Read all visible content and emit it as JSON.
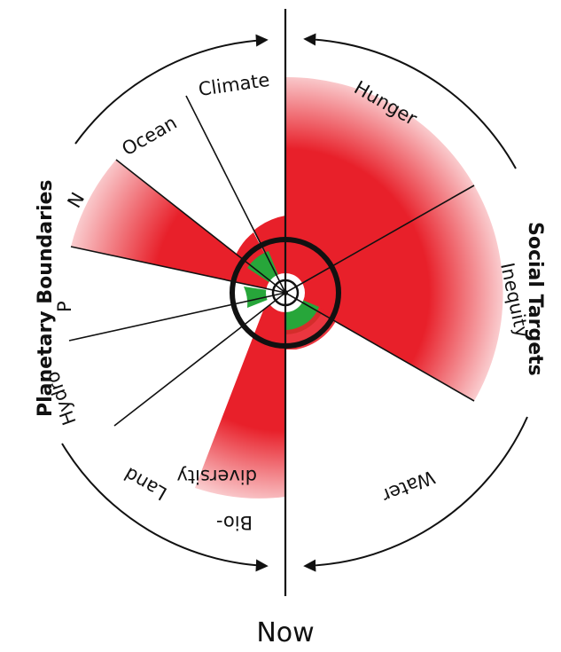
{
  "labels": {
    "now": "Now",
    "planetary_boundaries": "Planetary Boundaries",
    "social_targets": "Social Targets"
  },
  "planetary_boundaries": [
    {
      "name": "Climate",
      "level": 0.2
    },
    {
      "name": "Ocean",
      "level": 0.2
    },
    {
      "name": "N",
      "level": 2.8
    },
    {
      "name": "P",
      "level": 0.2
    },
    {
      "name": "Hydro",
      "level": 0.2
    },
    {
      "name": "Land",
      "level": 0.2
    },
    {
      "name": "Bio-\ndiversity",
      "level": 2.9
    }
  ],
  "social_targets": [
    {
      "name": "Hunger",
      "level": 3.1
    },
    {
      "name": "Inequity",
      "level": 3.7
    },
    {
      "name": "Water",
      "level": 0.3
    }
  ],
  "colors": {
    "overshoot": "#e8202a",
    "safe": "#27a63a",
    "boundary_ring": "#111111"
  }
}
